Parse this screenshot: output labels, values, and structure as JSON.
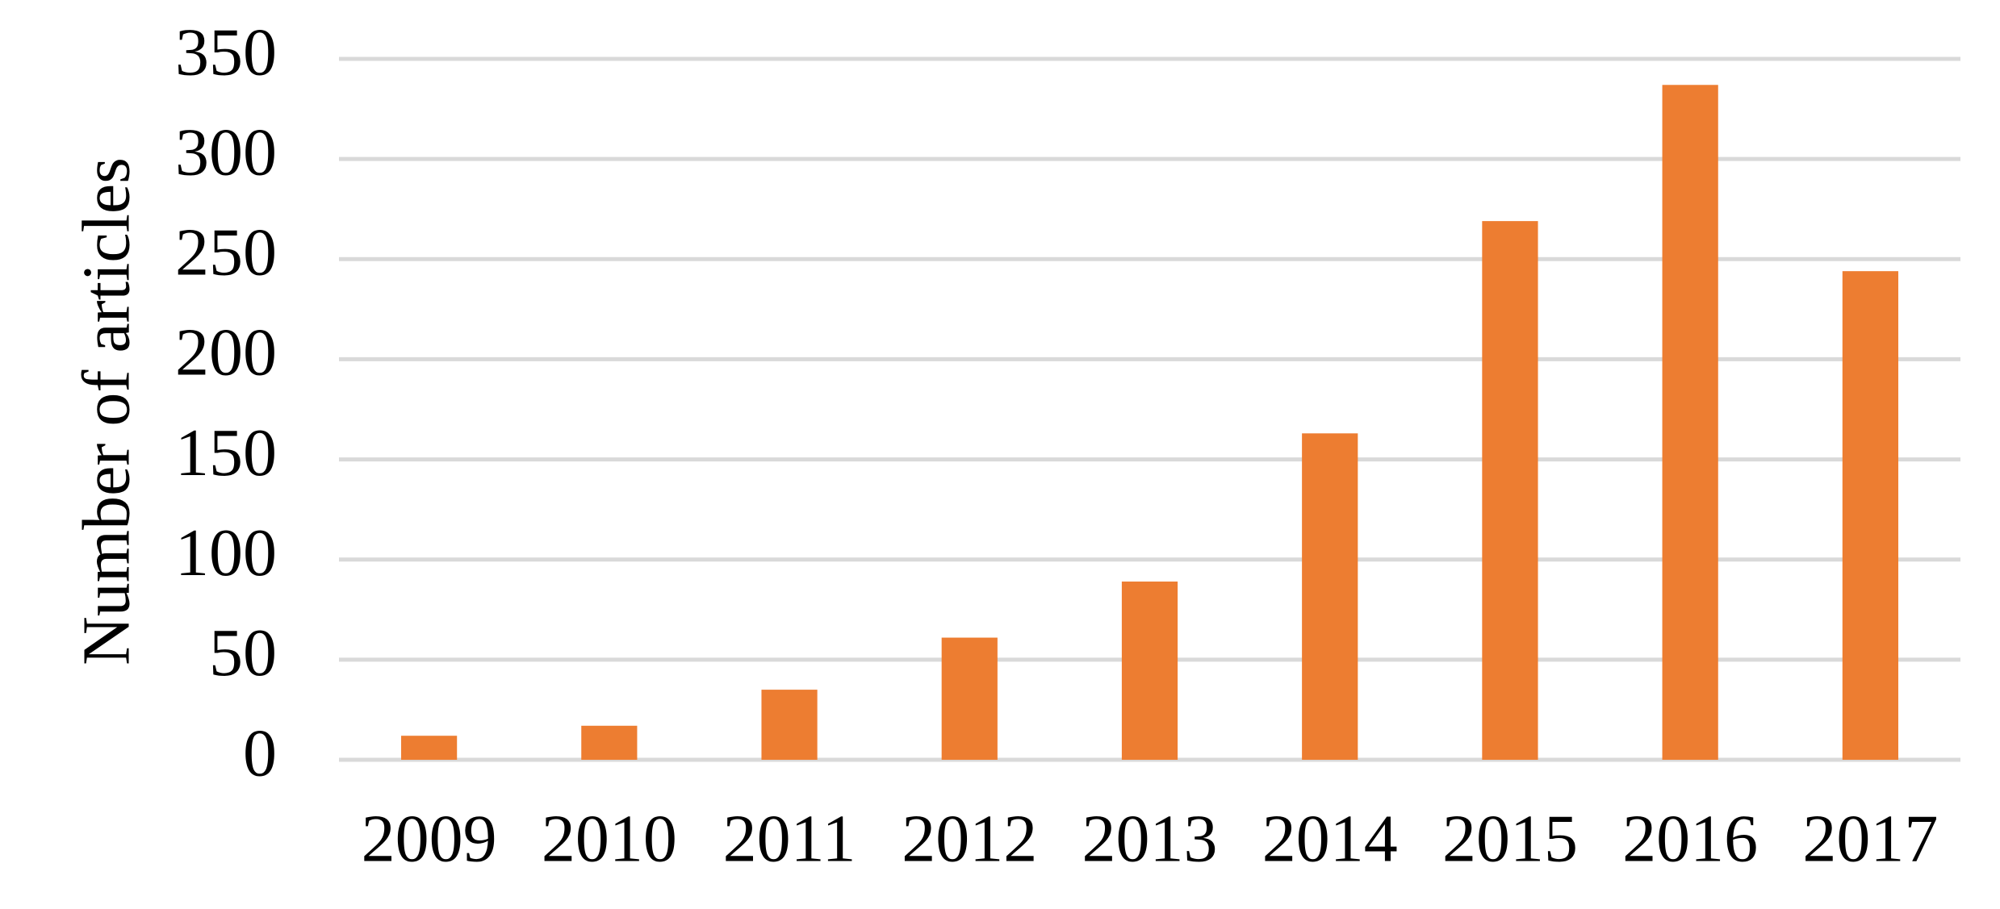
{
  "chart_data": {
    "type": "bar",
    "y_label": "Number of articles",
    "categories": [
      "2009",
      "2010",
      "2011",
      "2012",
      "2013",
      "2014",
      "2015",
      "2016",
      "2017"
    ],
    "values": [
      12,
      17,
      35,
      61,
      89,
      163,
      269,
      337,
      244
    ],
    "color": "#ed7d31",
    "ylim": [
      0,
      350
    ],
    "yticks": [
      0,
      50,
      100,
      150,
      200,
      250,
      300,
      350
    ],
    "grid": true
  }
}
